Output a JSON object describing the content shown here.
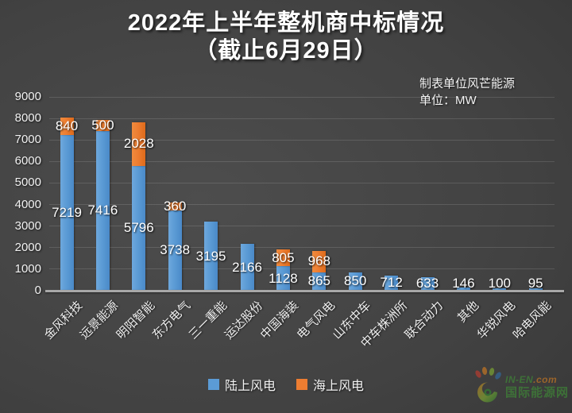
{
  "title": {
    "line1": "2022年上半年整机商中标情况",
    "line2": "（截止6月29日）"
  },
  "annotation": {
    "line1": "制表单位风芒能源",
    "line2": "单位：MW"
  },
  "chart_data": {
    "type": "bar",
    "stacked": true,
    "title": "2022年上半年整机商中标情况（截止6月29日）",
    "unit": "MW",
    "categories": [
      "金风科技",
      "远景能源",
      "明阳智能",
      "东方电气",
      "三一重能",
      "运达股份",
      "中国海装",
      "电气风电",
      "山东中车",
      "中车株洲所",
      "联合动力",
      "其他",
      "华锐风电",
      "哈电风能"
    ],
    "series": [
      {
        "name": "陆上风电",
        "color": "#5b9bd5",
        "values": [
          7219,
          7416,
          5796,
          3738,
          3195,
          2166,
          1128,
          865,
          850,
          712,
          633,
          146,
          100,
          95
        ]
      },
      {
        "name": "海上风电",
        "color": "#ed7d31",
        "values": [
          840,
          500,
          2028,
          360,
          0,
          0,
          805,
          968,
          0,
          0,
          0,
          0,
          0,
          0
        ]
      }
    ],
    "ylim": [
      0,
      9000
    ],
    "yticks": [
      0,
      1000,
      2000,
      3000,
      4000,
      5000,
      6000,
      7000,
      8000,
      9000
    ],
    "grid": true,
    "legend_position": "bottom",
    "data_labels": true
  },
  "watermark": {
    "line1_part1": "IN-EN",
    "line1_part2": ".com",
    "line2": "国际能源网"
  },
  "colors": {
    "onshore": "#5b9bd5",
    "offshore": "#ed7d31",
    "background": "#424242",
    "axis": "#a8a8a8",
    "watermark_green": "#3f9c35"
  }
}
